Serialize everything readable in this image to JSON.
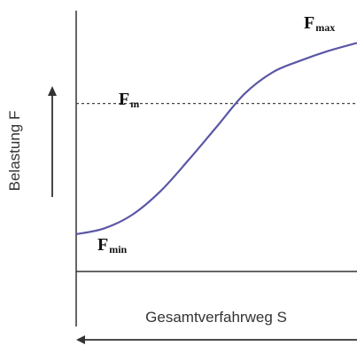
{
  "chart_data": {
    "type": "line",
    "ylabel": "Belastung F",
    "xlabel": "Gesamtverfahrweg S",
    "grid": false,
    "colors": {
      "curve": "#5b57a6",
      "axis": "#333333",
      "reference_line": "#444444"
    },
    "annotations": {
      "fmax": {
        "main": "F",
        "sub": "max"
      },
      "fm": {
        "main": "F",
        "sub": "m"
      },
      "fmin": {
        "main": "F",
        "sub": "min"
      }
    },
    "reference_line": {
      "label": "Fm",
      "y": 0.67,
      "style": "dashed"
    },
    "series": [
      {
        "x": [
          0,
          0.1,
          0.2,
          0.3,
          0.4,
          0.5,
          0.6,
          0.7,
          0.8,
          0.9,
          1.0
        ],
        "values": [
          0.0,
          0.03,
          0.1,
          0.22,
          0.38,
          0.55,
          0.72,
          0.83,
          0.89,
          0.94,
          0.98
        ]
      }
    ]
  }
}
